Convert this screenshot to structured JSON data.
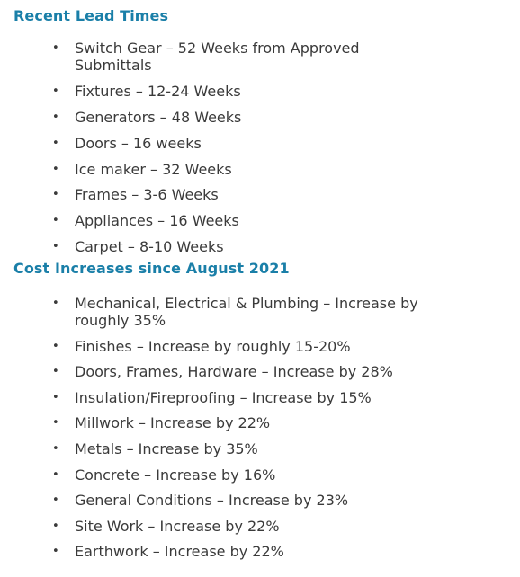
{
  "lead_times": {
    "heading": "Recent Lead Times",
    "items": [
      "Switch Gear – 52 Weeks from Approved Submittals",
      "Fixtures – 12-24 Weeks",
      "Generators – 48 Weeks",
      "Doors – 16 weeks",
      "Ice maker – 32 Weeks",
      "Frames – 3-6 Weeks",
      "Appliances – 16 Weeks",
      "Carpet – 8-10 Weeks"
    ]
  },
  "cost_increases": {
    "heading": "Cost Increases since August 2021",
    "items": [
      "Mechanical, Electrical & Plumbing – Increase by roughly 35%",
      "Finishes – Increase by roughly 15-20%",
      "Doors, Frames, Hardware – Increase by 28%",
      "Insulation/Fireproofing – Increase by 15%",
      "Millwork – Increase by 22%",
      "Metals – Increase by 35%",
      "Concrete – Increase by 16%",
      "General Conditions – Increase by 23%",
      "Site Work – Increase by 22%",
      "Earthwork – Increase by 22%"
    ]
  },
  "colors": {
    "heading": "#1a7fa8",
    "body_text": "#3a3a3a",
    "background": "#ffffff"
  }
}
